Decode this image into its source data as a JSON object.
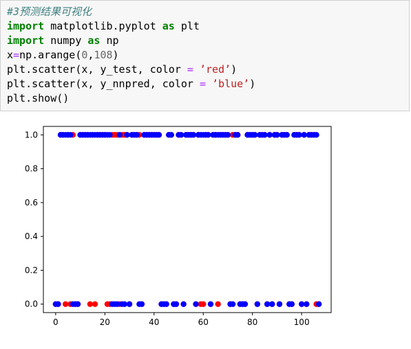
{
  "cell": {
    "comment": "#3预测结果可视化",
    "line2": {
      "kw1": "import",
      "mid": " matplotlib.pyplot ",
      "kw2": "as",
      "tail": " plt"
    },
    "line3": {
      "kw1": "import",
      "mid": " numpy ",
      "kw2": "as",
      "tail": " np"
    },
    "line4": {
      "a": "x",
      "op": "=",
      "b": "np.arange(",
      "n1": "0",
      "c": ",",
      "n2": "108",
      "d": ")"
    },
    "line5": {
      "a": "plt.scatter(x, y_test, color ",
      "op": "=",
      "sp": " ",
      "str": "’red’",
      "end": ")"
    },
    "line6": {
      "a": "plt.scatter(x, y_nnpred, color ",
      "op": "=",
      "sp": " ",
      "str": "’blue’",
      "end": ")"
    },
    "line7": "plt.show()"
  },
  "chart_data": {
    "type": "scatter",
    "xlim": [
      -5,
      112
    ],
    "ylim": [
      -0.05,
      1.05
    ],
    "xticks": [
      0,
      20,
      40,
      60,
      80,
      100
    ],
    "yticks": [
      0.0,
      0.2,
      0.4,
      0.6,
      0.8,
      1.0
    ],
    "xtick_labels": [
      "0",
      "20",
      "40",
      "60",
      "80",
      "100"
    ],
    "ytick_labels": [
      "0.0",
      "0.2",
      "0.4",
      "0.6",
      "0.8",
      "1.0"
    ],
    "series": [
      {
        "color": "#ff0000",
        "x": [
          0,
          1,
          2,
          3,
          4,
          5,
          6,
          7,
          8,
          9,
          10,
          11,
          12,
          13,
          14,
          15,
          16,
          17,
          18,
          19,
          20,
          21,
          22,
          23,
          24,
          25,
          26,
          27,
          28,
          29,
          30,
          31,
          32,
          33,
          34,
          35,
          36,
          37,
          38,
          39,
          40,
          41,
          42,
          43,
          44,
          45,
          46,
          47,
          48,
          49,
          50,
          51,
          52,
          53,
          54,
          55,
          56,
          57,
          58,
          59,
          60,
          61,
          62,
          63,
          64,
          65,
          66,
          67,
          68,
          69,
          70,
          71,
          72,
          73,
          74,
          75,
          76,
          77,
          78,
          79,
          80,
          81,
          82,
          83,
          84,
          85,
          86,
          87,
          88,
          89,
          90,
          91,
          92,
          93,
          94,
          95,
          96,
          97,
          98,
          99,
          100,
          101,
          102,
          103,
          104,
          105,
          106,
          107
        ],
        "y": [
          0,
          0,
          1,
          1,
          0,
          1,
          0,
          1,
          0,
          0,
          1,
          1,
          1,
          1,
          0,
          1,
          0,
          1,
          1,
          1,
          1,
          0,
          0,
          1,
          1,
          1,
          0,
          1,
          1,
          1,
          0,
          1,
          1,
          1,
          1,
          0,
          1,
          1,
          1,
          1,
          1,
          1,
          1,
          0,
          0,
          0,
          1,
          1,
          0,
          0,
          1,
          1,
          0,
          1,
          1,
          1,
          1,
          0,
          1,
          0,
          0,
          1,
          1,
          0,
          1,
          1,
          0,
          1,
          1,
          1,
          1,
          0,
          1,
          1,
          1,
          0,
          0,
          0,
          1,
          1,
          1,
          1,
          0,
          1,
          1,
          1,
          0,
          1,
          0,
          1,
          1,
          0,
          1,
          1,
          1,
          0,
          0,
          1,
          1,
          1,
          0,
          1,
          0,
          1,
          1,
          1,
          0,
          0
        ]
      },
      {
        "color": "#0000ff",
        "x": [
          0,
          1,
          2,
          3,
          4,
          5,
          6,
          7,
          8,
          9,
          10,
          11,
          12,
          13,
          14,
          15,
          16,
          17,
          18,
          19,
          20,
          21,
          22,
          23,
          24,
          25,
          26,
          27,
          28,
          29,
          30,
          31,
          32,
          33,
          34,
          35,
          36,
          37,
          38,
          39,
          40,
          41,
          42,
          43,
          44,
          45,
          46,
          47,
          48,
          49,
          50,
          51,
          52,
          53,
          54,
          55,
          56,
          57,
          58,
          59,
          60,
          61,
          62,
          63,
          64,
          65,
          66,
          67,
          68,
          69,
          70,
          71,
          72,
          73,
          74,
          75,
          76,
          77,
          78,
          79,
          80,
          81,
          82,
          83,
          84,
          85,
          86,
          87,
          88,
          89,
          90,
          91,
          92,
          93,
          94,
          95,
          96,
          97,
          98,
          99,
          100,
          101,
          102,
          103,
          104,
          105,
          106,
          107
        ],
        "y": [
          0,
          0,
          1,
          1,
          1,
          1,
          1,
          0,
          0,
          0,
          1,
          1,
          1,
          1,
          1,
          1,
          1,
          1,
          1,
          1,
          1,
          1,
          1,
          0,
          0,
          0,
          1,
          0,
          0,
          1,
          0,
          1,
          1,
          1,
          0,
          0,
          1,
          1,
          1,
          1,
          1,
          1,
          1,
          0,
          0,
          0,
          1,
          1,
          0,
          0,
          1,
          1,
          0,
          1,
          1,
          1,
          1,
          0,
          1,
          1,
          1,
          1,
          1,
          0,
          1,
          1,
          1,
          1,
          1,
          1,
          1,
          0,
          0,
          1,
          1,
          0,
          0,
          0,
          1,
          1,
          1,
          1,
          0,
          1,
          1,
          1,
          0,
          1,
          0,
          1,
          1,
          0,
          1,
          1,
          1,
          0,
          0,
          1,
          1,
          1,
          0,
          1,
          0,
          1,
          1,
          1,
          1,
          0
        ]
      }
    ]
  }
}
